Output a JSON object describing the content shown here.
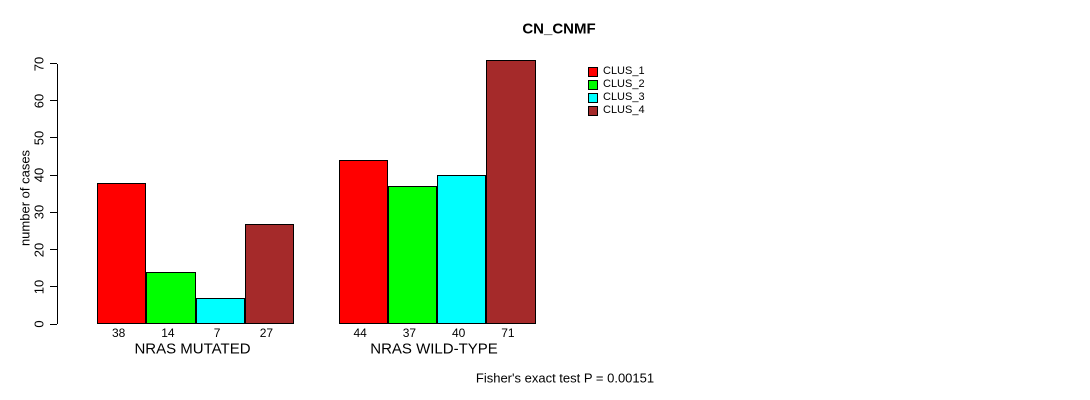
{
  "chart_data": {
    "type": "bar",
    "title": "CN_CNMF",
    "categories": [
      "NRAS MUTATED",
      "NRAS WILD-TYPE"
    ],
    "series": [
      {
        "name": "CLUS_1",
        "color": "#FF0000",
        "values": [
          38,
          44
        ]
      },
      {
        "name": "CLUS_2",
        "color": "#00FF00",
        "values": [
          14,
          37
        ]
      },
      {
        "name": "CLUS_3",
        "color": "#00FFFF",
        "values": [
          7,
          40
        ]
      },
      {
        "name": "CLUS_4",
        "color": "#A52A2A",
        "values": [
          27,
          71
        ]
      }
    ],
    "ylabel": "number of cases",
    "xlabel": "",
    "ylim": [
      0,
      70
    ],
    "yticks": [
      0,
      10,
      20,
      30,
      40,
      50,
      60,
      70
    ],
    "grid": false,
    "show_values_under_bars": true,
    "legend_position": "top-right",
    "caption": "Fisher's exact test P = 0.00151",
    "axis_color": "#000000",
    "background_color": "#FFFFFF"
  }
}
